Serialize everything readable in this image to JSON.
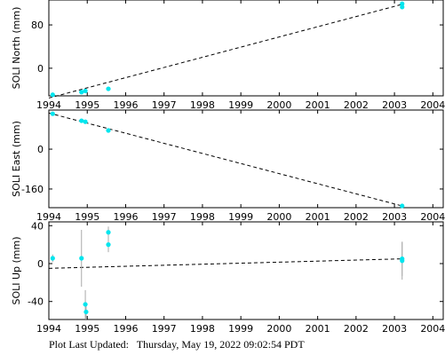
{
  "chart_data": [
    {
      "type": "scatter",
      "ylabel": "SOLI North (mm)",
      "color": "#00e5ee",
      "x": [
        1994.1,
        1994.85,
        1994.95,
        1995.55,
        2003.2,
        2003.2
      ],
      "values": [
        -49,
        -44,
        -42,
        -38,
        113,
        119
      ],
      "trend": {
        "x": [
          1994,
          2003.2
        ],
        "values": [
          -55,
          118
        ]
      },
      "xlim": [
        1994,
        2004.27
      ],
      "xticks": [
        1994,
        1995,
        1996,
        1997,
        1998,
        1999,
        2000,
        2001,
        2002,
        2003,
        2004
      ],
      "ylim": [
        -51,
        126
      ],
      "yticks": [
        0,
        80
      ]
    },
    {
      "type": "scatter",
      "ylabel": "SOLI East (mm)",
      "color": "#00e5ee",
      "x": [
        1994.1,
        1994.85,
        1994.95,
        1995.55,
        2003.2
      ],
      "values": [
        142,
        114,
        110,
        75,
        -228
      ],
      "trend": {
        "x": [
          1994,
          2003.2
        ],
        "values": [
          145,
          -228
        ]
      },
      "xlim": [
        1994,
        2004.27
      ],
      "xticks": [
        1994,
        1995,
        1996,
        1997,
        1998,
        1999,
        2000,
        2001,
        2002,
        2003,
        2004
      ],
      "ylim": [
        -235,
        157
      ],
      "yticks": [
        -160,
        0
      ]
    },
    {
      "type": "scatter",
      "ylabel": "SOLI Up (mm)",
      "color": "#00e5ee",
      "x": [
        1994.1,
        1994.85,
        1994.95,
        1994.97,
        1995.55,
        1995.55,
        2003.2,
        2003.2
      ],
      "values": [
        5.6,
        5.6,
        -43,
        -51,
        33,
        20,
        5,
        3
      ],
      "errors": [
        4,
        30,
        15,
        8,
        6,
        8,
        18,
        20
      ],
      "trend": {
        "x": [
          1994,
          2003.2
        ],
        "values": [
          -5,
          5
        ]
      },
      "xlim": [
        1994,
        2004.27
      ],
      "xticks": [
        1994,
        1995,
        1996,
        1997,
        1998,
        1999,
        2000,
        2001,
        2002,
        2003,
        2004
      ],
      "ylim": [
        -59,
        44
      ],
      "yticks": [
        -40,
        0,
        40
      ]
    }
  ],
  "footer": "Plot Last Updated:   Thursday, May 19, 2022 09:02:54 PDT"
}
